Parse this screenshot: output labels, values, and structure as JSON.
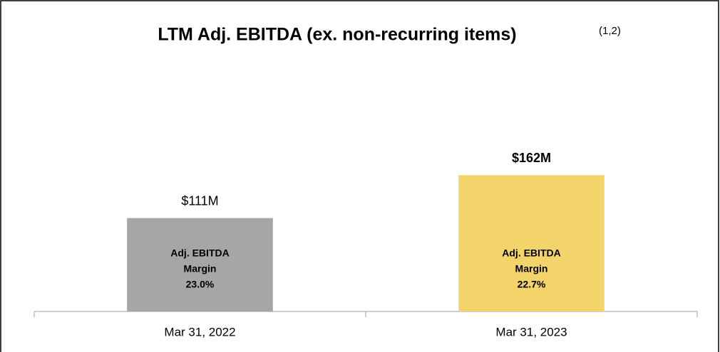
{
  "chart_data": {
    "type": "bar",
    "title": "LTM Adj. EBITDA (ex. non-recurring items)",
    "title_note": "(1,2)",
    "categories": [
      "Mar 31, 2022",
      "Mar 31, 2023"
    ],
    "values": [
      111,
      162
    ],
    "value_labels": [
      "$111M",
      "$162M"
    ],
    "colors": [
      "#a6a6a6",
      "#f3d46b"
    ],
    "margin_label": [
      "Adj. EBITDA",
      "Margin"
    ],
    "margins": [
      23.0,
      22.7
    ],
    "margin_labels": [
      "23.0%",
      "22.7%"
    ],
    "ylim": [
      0,
      300
    ]
  }
}
